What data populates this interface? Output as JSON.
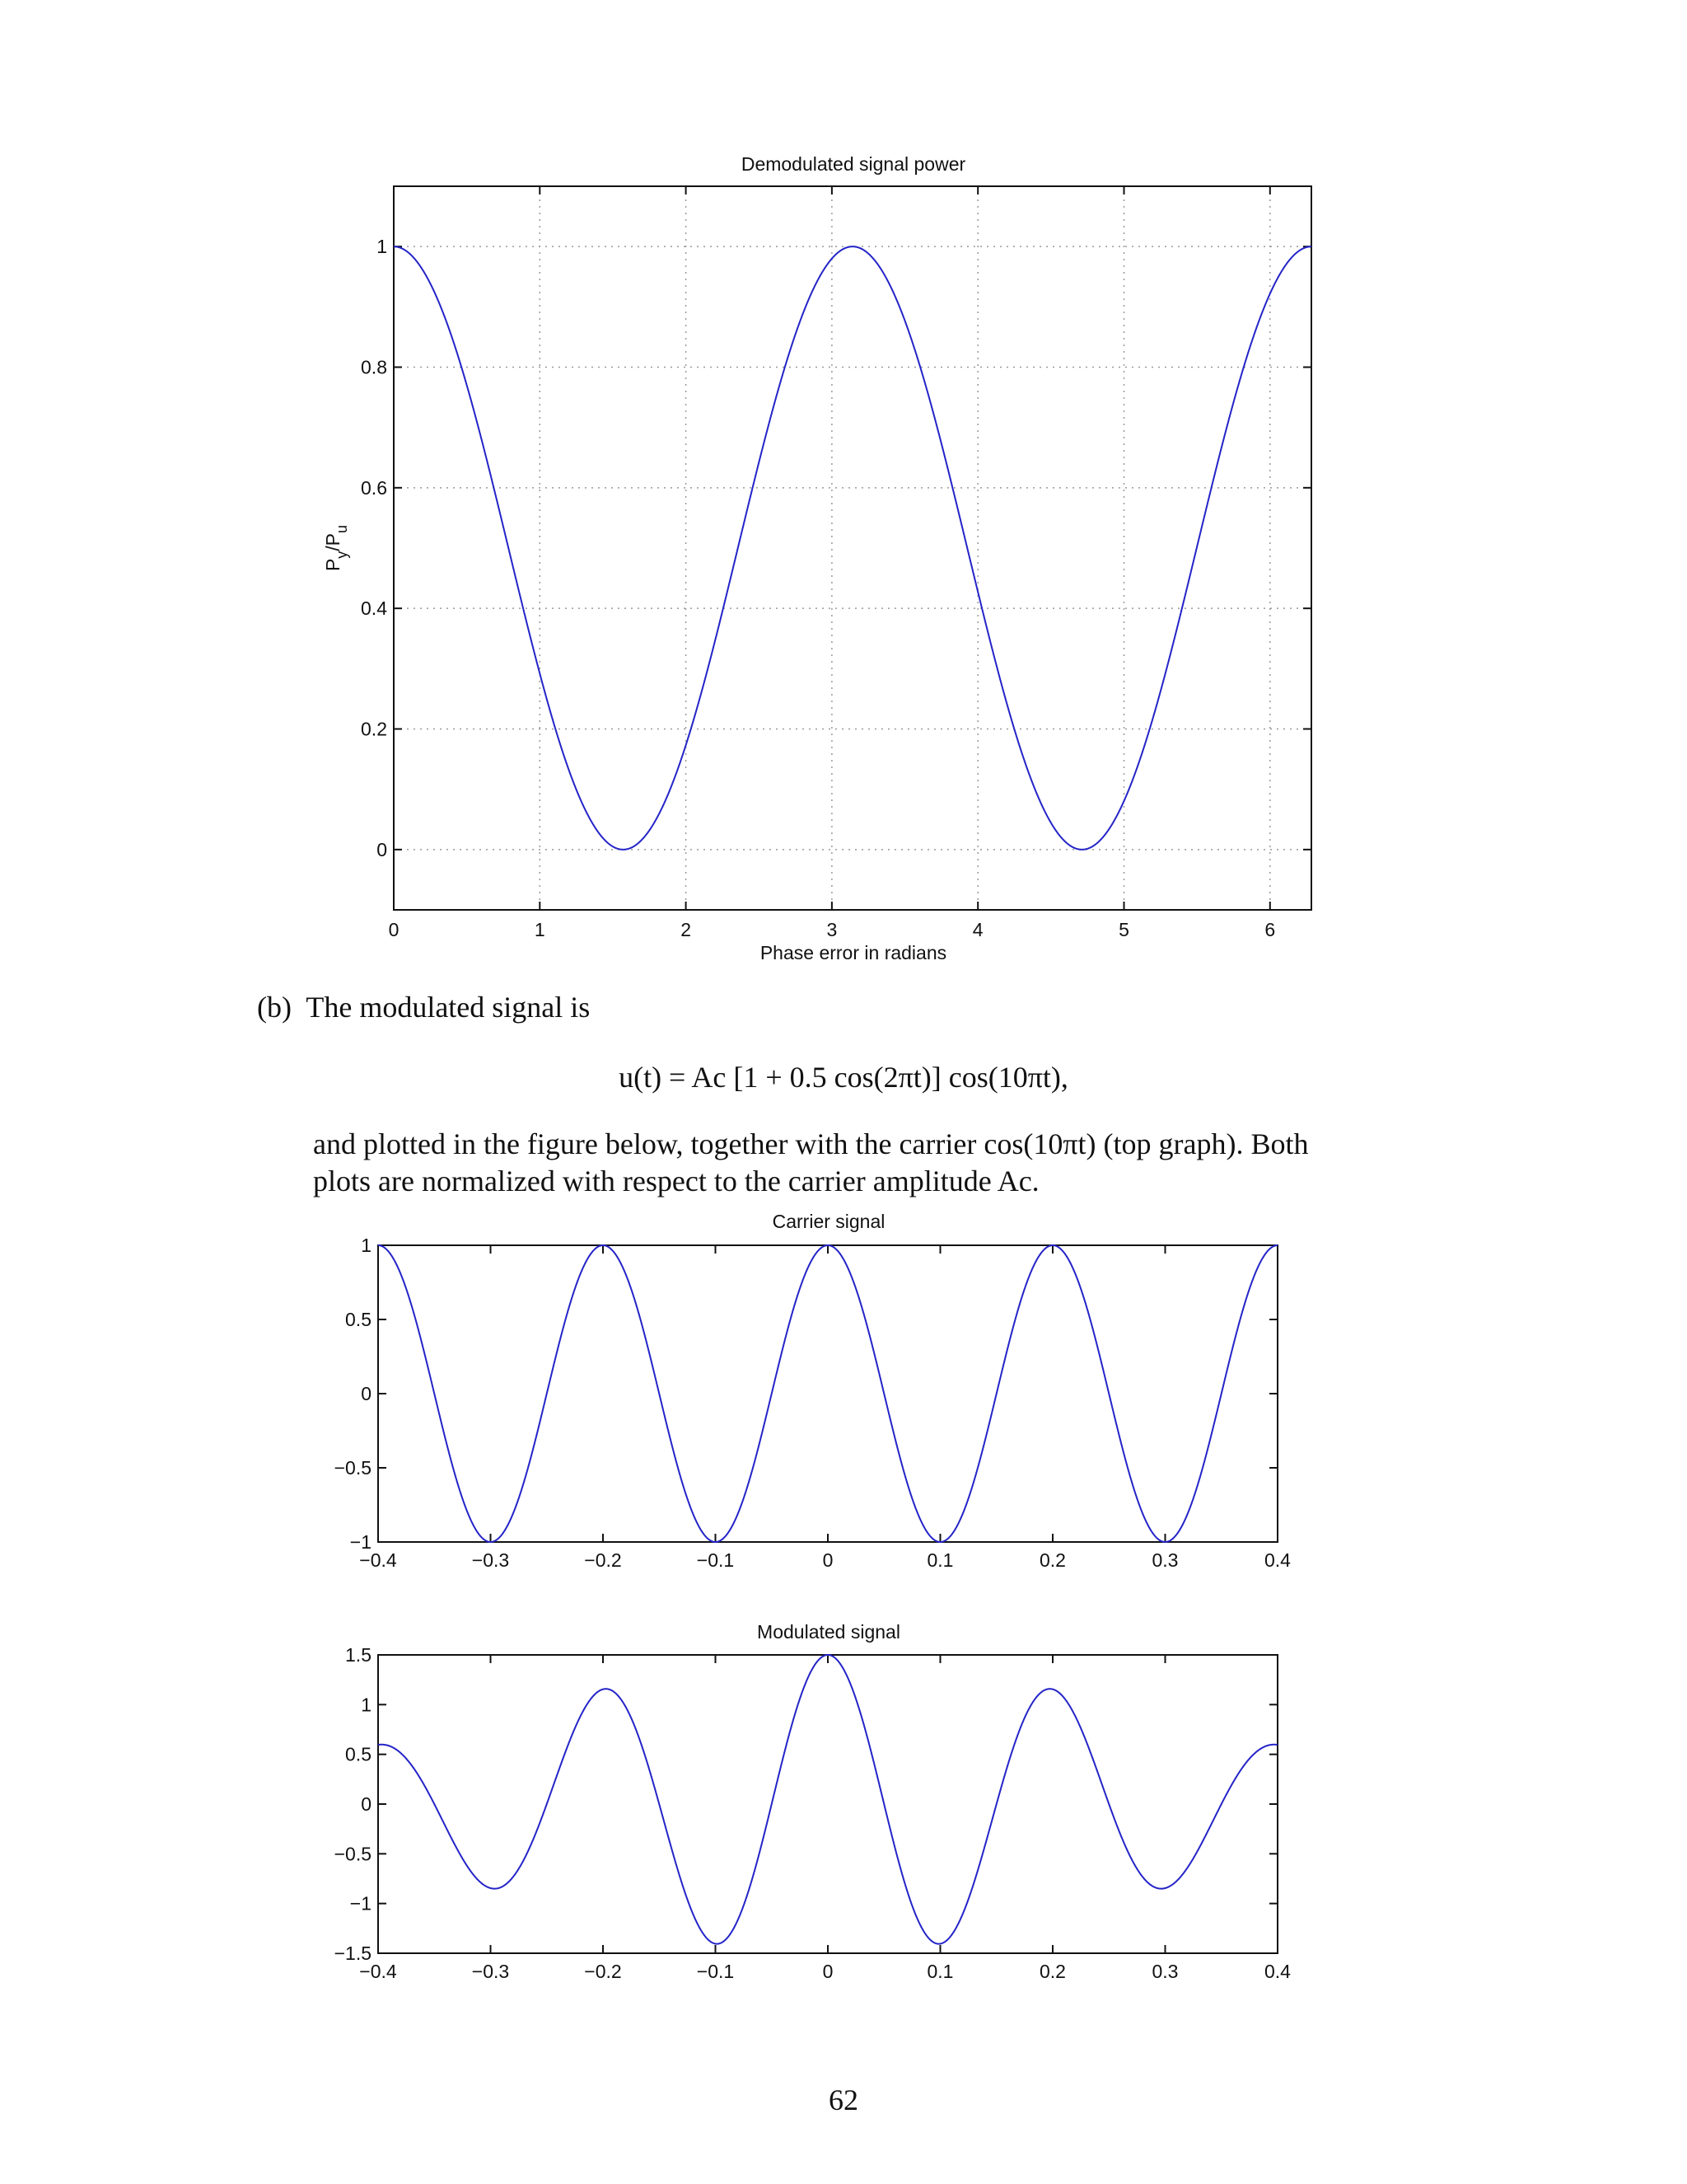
{
  "page": {
    "item_label": "(b)",
    "intro_text": "The modulated signal is",
    "equation": "u(t) = Ac [1 + 0.5 cos(2πt)] cos(10πt),",
    "body_text_line1": "and plotted in the figure below, together with the carrier cos(10πt) (top graph). Both",
    "body_text_line2": "plots are normalized with respect to the carrier amplitude Ac.",
    "page_number": "62"
  },
  "chart_data": [
    {
      "type": "line",
      "title": "Demodulated signal power",
      "xlabel": "Phase error in radians",
      "ylabel_main": "P",
      "ylabel_sub1": "y",
      "ylabel_sep": "/P",
      "ylabel_sub2": "u",
      "xlim": [
        0,
        6.2832
      ],
      "ylim": [
        -0.1,
        1.1
      ],
      "xticks": [
        0,
        1,
        2,
        3,
        4,
        5,
        6
      ],
      "yticks": [
        0,
        0.2,
        0.4,
        0.6,
        0.8,
        1
      ],
      "xtick_labels": [
        "0",
        "1",
        "2",
        "3",
        "4",
        "5",
        "6"
      ],
      "ytick_labels": [
        "0",
        "0.2",
        "0.4",
        "0.6",
        "0.8",
        "1"
      ],
      "grid": true,
      "series": [
        {
          "function": "cos(x)^2",
          "x_range": [
            0,
            6.2832
          ],
          "color": "#2424c8"
        }
      ]
    },
    {
      "type": "line",
      "title": "Carrier signal",
      "xlim": [
        -0.4,
        0.4
      ],
      "ylim": [
        -1,
        1
      ],
      "xticks": [
        -0.4,
        -0.3,
        -0.2,
        -0.1,
        0,
        0.1,
        0.2,
        0.3,
        0.4
      ],
      "yticks": [
        -1,
        -0.5,
        0,
        0.5,
        1
      ],
      "xtick_labels": [
        "−0.4",
        "−0.3",
        "−0.2",
        "−0.1",
        "0",
        "0.1",
        "0.2",
        "0.3",
        "0.4"
      ],
      "ytick_labels": [
        "−1",
        "−0.5",
        "0",
        "0.5",
        "1"
      ],
      "grid": false,
      "series": [
        {
          "function": "cos(10πt)",
          "x_range": [
            -0.4,
            0.4
          ],
          "color": "#2424c8"
        }
      ]
    },
    {
      "type": "line",
      "title": "Modulated signal",
      "xlim": [
        -0.4,
        0.4
      ],
      "ylim": [
        -1.5,
        1.5
      ],
      "xticks": [
        -0.4,
        -0.3,
        -0.2,
        -0.1,
        0,
        0.1,
        0.2,
        0.3,
        0.4
      ],
      "yticks": [
        -1.5,
        -1,
        -0.5,
        0,
        0.5,
        1,
        1.5
      ],
      "xtick_labels": [
        "−0.4",
        "−0.3",
        "−0.2",
        "−0.1",
        "0",
        "0.1",
        "0.2",
        "0.3",
        "0.4"
      ],
      "ytick_labels": [
        "−1.5",
        "−1",
        "−0.5",
        "0",
        "0.5",
        "1",
        "1.5"
      ],
      "grid": false,
      "series": [
        {
          "function": "(1 + 0.5 cos(2πt)) cos(10πt)",
          "x_range": [
            -0.4,
            0.4
          ],
          "color": "#2424c8"
        }
      ]
    }
  ]
}
